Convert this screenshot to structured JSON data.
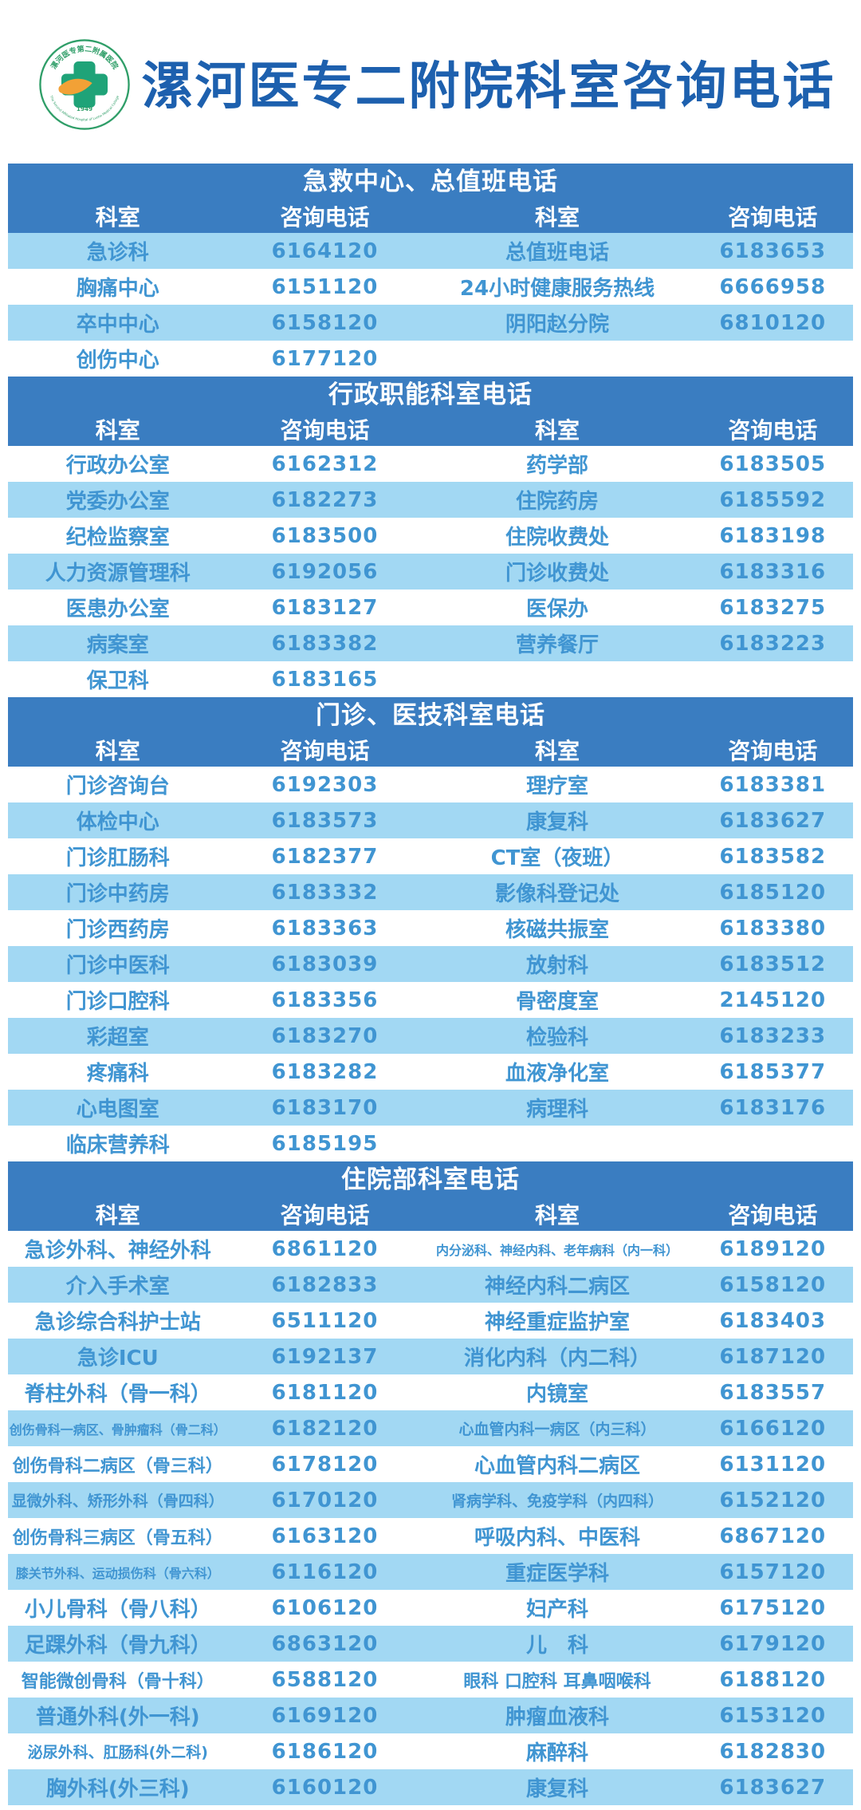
{
  "title": "漯河医专二附院科室咨询电话",
  "logo": {
    "ring_text_top": "漯河医专第二附属医院",
    "ring_text_bottom": "The Second Affiliated Hospital of Luohe Medical College",
    "year": "1949"
  },
  "column_headers": [
    "科室",
    "咨询电话",
    "科室",
    "咨询电话"
  ],
  "colors": {
    "band_blue": "#3a7dc1",
    "row_light_blue": "#a2d8f3",
    "row_text_blue": "#4095d2",
    "title_blue": "#1d60ae",
    "logo_green": "#2f9e68",
    "logo_orange": "#f2a136"
  },
  "sections": [
    {
      "title": "急救中心、总值班电话",
      "first_row_shaded": true,
      "rows": [
        [
          "急诊科",
          "6164120",
          "总值班电话",
          "6183653"
        ],
        [
          "胸痛中心",
          "6151120",
          "24小时健康服务热线",
          "6666958"
        ],
        [
          "卒中中心",
          "6158120",
          "阴阳赵分院",
          "6810120"
        ],
        [
          "创伤中心",
          "6177120",
          "",
          ""
        ]
      ]
    },
    {
      "title": "行政职能科室电话",
      "first_row_shaded": false,
      "rows": [
        [
          "行政办公室",
          "6162312",
          "药学部",
          "6183505"
        ],
        [
          "党委办公室",
          "6182273",
          "住院药房",
          "6185592"
        ],
        [
          "纪检监察室",
          "6183500",
          "住院收费处",
          "6183198"
        ],
        [
          "人力资源管理科",
          "6192056",
          "门诊收费处",
          "6183316"
        ],
        [
          "医患办公室",
          "6183127",
          "医保办",
          "6183275"
        ],
        [
          "病案室",
          "6183382",
          "营养餐厅",
          "6183223"
        ],
        [
          "保卫科",
          "6183165",
          "",
          ""
        ]
      ]
    },
    {
      "title": "门诊、医技科室电话",
      "first_row_shaded": false,
      "rows": [
        [
          "门诊咨询台",
          "6192303",
          "理疗室",
          "6183381"
        ],
        [
          "体检中心",
          "6183573",
          "康复科",
          "6183627"
        ],
        [
          "门诊肛肠科",
          "6182377",
          "CT室（夜班）",
          "6183582"
        ],
        [
          "门诊中药房",
          "6183332",
          "影像科登记处",
          "6185120"
        ],
        [
          "门诊西药房",
          "6183363",
          "核磁共振室",
          "6183380"
        ],
        [
          "门诊中医科",
          "6183039",
          "放射科",
          "6183512"
        ],
        [
          "门诊口腔科",
          "6183356",
          "骨密度室",
          "2145120"
        ],
        [
          "彩超室",
          "6183270",
          "检验科",
          "6183233"
        ],
        [
          "疼痛科",
          "6183282",
          "血液净化室",
          "6185377"
        ],
        [
          "心电图室",
          "6183170",
          "病理科",
          "6183176"
        ],
        [
          "临床营养科",
          "6185195",
          "",
          ""
        ]
      ]
    },
    {
      "title": "住院部科室电话",
      "first_row_shaded": false,
      "rows": [
        [
          "急诊外科、神经外科",
          "6861120",
          "内分泌科、神经内科、老年病科（内一科）",
          "6189120"
        ],
        [
          "介入手术室",
          "6182833",
          "神经内科二病区",
          "6158120"
        ],
        [
          "急诊综合科护士站",
          "6511120",
          "神经重症监护室",
          "6183403"
        ],
        [
          "急诊ICU",
          "6192137",
          "消化内科（内二科）",
          "6187120"
        ],
        [
          "脊柱外科（骨一科）",
          "6181120",
          "内镜室",
          "6183557"
        ],
        [
          "创伤骨科一病区、骨肿瘤科（骨二科）",
          "6182120",
          "心血管内科一病区（内三科）",
          "6166120"
        ],
        [
          "创伤骨科二病区（骨三科）",
          "6178120",
          "心血管内科二病区",
          "6131120"
        ],
        [
          "显微外科、矫形外科（骨四科）",
          "6170120",
          "肾病学科、免疫学科（内四科）",
          "6152120"
        ],
        [
          "创伤骨科三病区（骨五科）",
          "6163120",
          "呼吸内科、中医科",
          "6867120"
        ],
        [
          "膝关节外科、运动损伤科（骨六科）",
          "6116120",
          "重症医学科",
          "6157120"
        ],
        [
          "小儿骨科（骨八科）",
          "6106120",
          "妇产科",
          "6175120"
        ],
        [
          "足踝外科（骨九科）",
          "6863120",
          "儿　科",
          "6179120"
        ],
        [
          "智能微创骨科（骨十科）",
          "6588120",
          "眼科 口腔科 耳鼻咽喉科",
          "6188120"
        ],
        [
          "普通外科(外一科)",
          "6169120",
          "肿瘤血液科",
          "6153120"
        ],
        [
          "泌尿外科、肛肠科(外二科)",
          "6186120",
          "麻醉科",
          "6182830"
        ],
        [
          "胸外科(外三科)",
          "6160120",
          "康复科",
          "6183627"
        ]
      ]
    }
  ]
}
